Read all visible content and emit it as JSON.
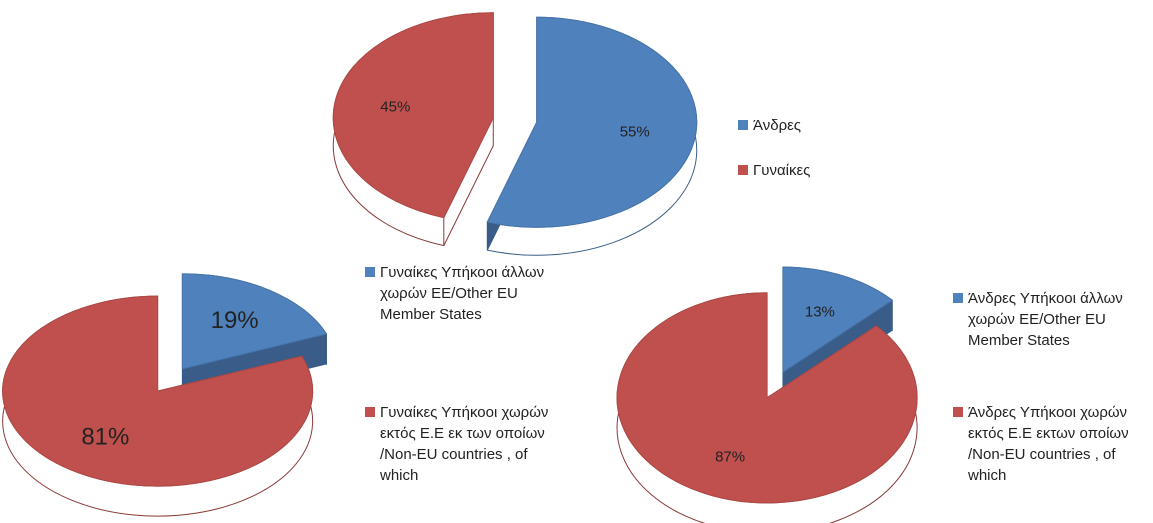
{
  "chart_data": [
    {
      "type": "pie",
      "categories": [
        "Άνδρες",
        "Γυναίκες"
      ],
      "values": [
        55,
        45
      ],
      "value_labels": [
        "55%",
        "45%"
      ],
      "colors": [
        "#4f81bd",
        "#c0504d"
      ]
    },
    {
      "type": "pie",
      "categories": [
        "Γυναίκες Υπήκοοι άλλων χωρών ΕΕ/Other EU Member States",
        "Γυναίκες Υπήκοοι χωρών εκτός Ε.Ε εκ των οποίων /Non-EU countries , of which"
      ],
      "values": [
        19,
        81
      ],
      "value_labels": [
        "19%",
        "81%"
      ],
      "colors": [
        "#4f81bd",
        "#c0504d"
      ]
    },
    {
      "type": "pie",
      "categories": [
        "Άνδρες Υπήκοοι άλλων χωρών ΕΕ/Other EU Member States",
        "Άνδρες Υπήκοοι χωρών εκτός Ε.Ε εκτων οποίων /Non-EU countries , of which"
      ],
      "values": [
        13,
        87
      ],
      "value_labels": [
        "13%",
        "87%"
      ],
      "colors": [
        "#4f81bd",
        "#c0504d"
      ]
    }
  ]
}
